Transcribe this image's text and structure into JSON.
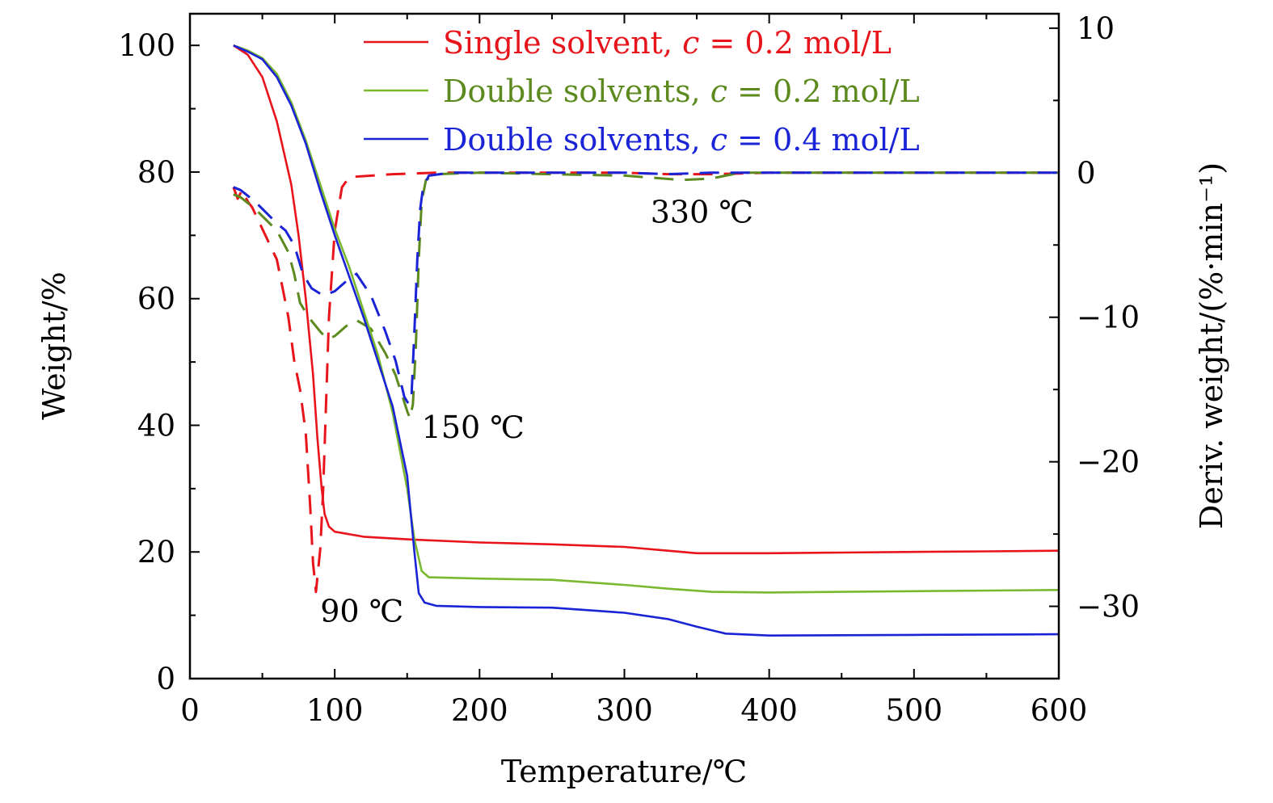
{
  "chart_data": {
    "type": "line",
    "title": "",
    "xlabel": "Temperature/℃",
    "ylabel": "Weight/%",
    "ylabel_right": "Deriv. weight/(%·min⁻¹)",
    "xlim": [
      0,
      600
    ],
    "ylim": [
      0,
      105
    ],
    "ylim_right": [
      -35,
      11
    ],
    "x_ticks": [
      "0",
      "100",
      "200",
      "300",
      "400",
      "500",
      "600"
    ],
    "y_ticks": [
      "0",
      "20",
      "40",
      "60",
      "80",
      "100"
    ],
    "y_right_ticks": [
      "10",
      "0",
      "−10",
      "−20",
      "−30"
    ],
    "legend_position": "top-right",
    "series": [
      {
        "name": "Single solvent, c = 0.2 mol/L",
        "legend_prefix": "Single solvent, ",
        "color": "#e8141b",
        "weight": [
          [
            30,
            100
          ],
          [
            40,
            98.5
          ],
          [
            50,
            95
          ],
          [
            60,
            88
          ],
          [
            70,
            78
          ],
          [
            75,
            70
          ],
          [
            80,
            60
          ],
          [
            85,
            48
          ],
          [
            88,
            38
          ],
          [
            91,
            30
          ],
          [
            93,
            26
          ],
          [
            96,
            24
          ],
          [
            100,
            23.2
          ],
          [
            120,
            22.4
          ],
          [
            150,
            22
          ],
          [
            200,
            21.5
          ],
          [
            250,
            21.2
          ],
          [
            300,
            20.8
          ],
          [
            330,
            20.2
          ],
          [
            350,
            19.8
          ],
          [
            400,
            19.8
          ],
          [
            450,
            19.9
          ],
          [
            500,
            20
          ],
          [
            550,
            20.1
          ],
          [
            600,
            20.2
          ]
        ],
        "deriv": [
          [
            30,
            -1
          ],
          [
            33,
            -1.8
          ],
          [
            36,
            -1.2
          ],
          [
            40,
            -2
          ],
          [
            43,
            -2.4
          ],
          [
            60,
            -6
          ],
          [
            64,
            -8
          ],
          [
            68,
            -10
          ],
          [
            72,
            -13
          ],
          [
            76,
            -15
          ],
          [
            80,
            -18
          ],
          [
            83,
            -23
          ],
          [
            85,
            -27
          ],
          [
            87,
            -29
          ],
          [
            88,
            -28
          ],
          [
            90,
            -26
          ],
          [
            92,
            -22
          ],
          [
            94,
            -16
          ],
          [
            96,
            -10
          ],
          [
            100,
            -4
          ],
          [
            105,
            -1
          ],
          [
            110,
            -0.3
          ],
          [
            140,
            -0.1
          ],
          [
            170,
            0
          ],
          [
            200,
            0
          ],
          [
            300,
            0
          ],
          [
            330,
            -0.1
          ],
          [
            360,
            -0.1
          ],
          [
            400,
            0
          ],
          [
            600,
            0
          ]
        ]
      },
      {
        "name": "Double solvents, c = 0.2 mol/L",
        "legend_prefix": "Double solvents, ",
        "color": "#7ab92f",
        "deriv_color": "#5c8a1e",
        "weight": [
          [
            30,
            100
          ],
          [
            40,
            99.2
          ],
          [
            50,
            98
          ],
          [
            60,
            95.5
          ],
          [
            70,
            91
          ],
          [
            80,
            85
          ],
          [
            90,
            78
          ],
          [
            100,
            71
          ],
          [
            110,
            65
          ],
          [
            120,
            58
          ],
          [
            130,
            51
          ],
          [
            140,
            42
          ],
          [
            150,
            30
          ],
          [
            155,
            22
          ],
          [
            160,
            17
          ],
          [
            165,
            16
          ],
          [
            200,
            15.8
          ],
          [
            250,
            15.6
          ],
          [
            300,
            14.8
          ],
          [
            330,
            14.2
          ],
          [
            360,
            13.7
          ],
          [
            400,
            13.6
          ],
          [
            500,
            13.8
          ],
          [
            600,
            14
          ]
        ],
        "deriv": [
          [
            30,
            -1.5
          ],
          [
            35,
            -1.7
          ],
          [
            45,
            -2.5
          ],
          [
            60,
            -4
          ],
          [
            68,
            -5.5
          ],
          [
            72,
            -7
          ],
          [
            76,
            -9
          ],
          [
            82,
            -10
          ],
          [
            90,
            -11
          ],
          [
            95,
            -11.5
          ],
          [
            100,
            -11.3
          ],
          [
            108,
            -10.6
          ],
          [
            115,
            -10.2
          ],
          [
            125,
            -10.8
          ],
          [
            135,
            -12.5
          ],
          [
            142,
            -14
          ],
          [
            150,
            -16.5
          ],
          [
            152,
            -17
          ],
          [
            154,
            -16
          ],
          [
            156,
            -12
          ],
          [
            158,
            -6
          ],
          [
            160,
            -2
          ],
          [
            163,
            -0.5
          ],
          [
            170,
            -0.1
          ],
          [
            200,
            0
          ],
          [
            300,
            -0.2
          ],
          [
            340,
            -0.5
          ],
          [
            360,
            -0.4
          ],
          [
            380,
            0
          ],
          [
            600,
            0
          ]
        ]
      },
      {
        "name": "Double solvents, c = 0.4 mol/L",
        "legend_prefix": "Double solvents, ",
        "color": "#1a23d6",
        "weight": [
          [
            30,
            100
          ],
          [
            40,
            99
          ],
          [
            50,
            97.8
          ],
          [
            60,
            95
          ],
          [
            70,
            90.5
          ],
          [
            80,
            84.5
          ],
          [
            90,
            77
          ],
          [
            100,
            70
          ],
          [
            110,
            63.5
          ],
          [
            120,
            57
          ],
          [
            130,
            50
          ],
          [
            140,
            43
          ],
          [
            150,
            32
          ],
          [
            155,
            20
          ],
          [
            158,
            13.5
          ],
          [
            162,
            12
          ],
          [
            170,
            11.5
          ],
          [
            200,
            11.3
          ],
          [
            250,
            11.2
          ],
          [
            300,
            10.4
          ],
          [
            330,
            9.4
          ],
          [
            350,
            8.2
          ],
          [
            370,
            7.1
          ],
          [
            400,
            6.8
          ],
          [
            500,
            6.9
          ],
          [
            600,
            7
          ]
        ],
        "deriv": [
          [
            30,
            -1
          ],
          [
            35,
            -1.2
          ],
          [
            45,
            -2
          ],
          [
            60,
            -3.5
          ],
          [
            66,
            -4
          ],
          [
            72,
            -5
          ],
          [
            78,
            -7
          ],
          [
            84,
            -8
          ],
          [
            92,
            -8.5
          ],
          [
            100,
            -8.2
          ],
          [
            108,
            -7.5
          ],
          [
            115,
            -7
          ],
          [
            125,
            -8.5
          ],
          [
            135,
            -11
          ],
          [
            142,
            -13
          ],
          [
            148,
            -15.5
          ],
          [
            151,
            -16
          ],
          [
            153,
            -15.5
          ],
          [
            155,
            -11
          ],
          [
            157,
            -6
          ],
          [
            159,
            -2.5
          ],
          [
            161,
            -1
          ],
          [
            165,
            -0.2
          ],
          [
            180,
            0
          ],
          [
            300,
            0
          ],
          [
            330,
            -0.1
          ],
          [
            360,
            0
          ],
          [
            600,
            0
          ]
        ]
      }
    ],
    "annotations": [
      {
        "text": "90 ℃",
        "x": 90,
        "y": 9
      },
      {
        "text": "150 ℃",
        "x": 160,
        "y": 38
      },
      {
        "text": "330 ℃",
        "x": 318,
        "y": 72
      }
    ]
  },
  "legend_var": "c",
  "legend_eq": " = ",
  "legend_values": [
    "0.2 mol/L",
    "0.2 mol/L",
    "0.4 mol/L"
  ]
}
